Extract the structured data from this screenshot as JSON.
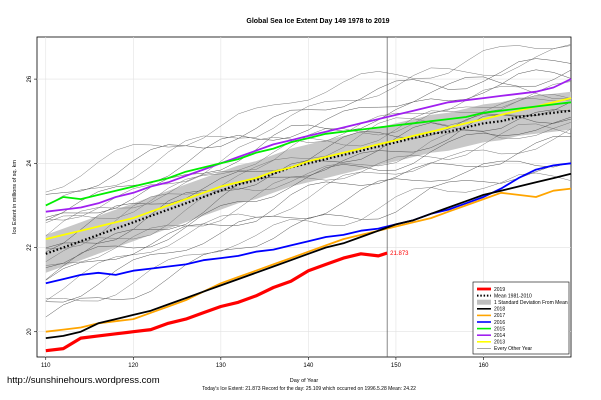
{
  "chart_data": {
    "type": "line",
    "title": "Global Sea Ice Extent Day 149 1978 to 2019",
    "xlabel": "Day of Year",
    "ylabel": "Ice Extent in millions of sq. km",
    "xlim": [
      109,
      170
    ],
    "ylim": [
      19.4,
      27.0
    ],
    "x_ticks": [
      110,
      120,
      130,
      140,
      150,
      160
    ],
    "y_ticks": [
      20,
      22,
      24,
      26
    ],
    "marker_day": 149,
    "annotation": "21.873",
    "footnote": "Today's Ice Extent: 21.873   Record for the day: 25.109 which occurred on 1996.5.28   Mean: 24.22",
    "watermark": "http://sunshinehours.wordpress.com",
    "grid": true,
    "legend_position": "bottom-right",
    "legend": [
      {
        "label": "2019",
        "color": "#ff0000",
        "style": "thick"
      },
      {
        "label": "Mean 1981-2010",
        "color": "#000000",
        "style": "dotted"
      },
      {
        "label": "1 Standard Deviation From Mean",
        "color": "#bfbfbf",
        "style": "band"
      },
      {
        "label": "2018",
        "color": "#000000",
        "style": "line"
      },
      {
        "label": "2017",
        "color": "#ffa500",
        "style": "line"
      },
      {
        "label": "2016",
        "color": "#0000ff",
        "style": "line"
      },
      {
        "label": "2015",
        "color": "#00ee00",
        "style": "line"
      },
      {
        "label": "2014",
        "color": "#a020f0",
        "style": "line"
      },
      {
        "label": "2013",
        "color": "#ffff00",
        "style": "line"
      },
      {
        "label": "Every Other Year",
        "color": "#808080",
        "style": "thin"
      }
    ],
    "series": [
      {
        "name": "2019",
        "color": "#ff0000",
        "width": 3.2,
        "x": [
          110,
          112,
          114,
          116,
          118,
          120,
          122,
          124,
          126,
          128,
          130,
          132,
          134,
          136,
          138,
          140,
          142,
          144,
          146,
          148,
          149
        ],
        "y": [
          19.55,
          19.6,
          19.85,
          19.9,
          19.95,
          20.0,
          20.05,
          20.2,
          20.3,
          20.45,
          20.6,
          20.7,
          20.85,
          21.05,
          21.2,
          21.45,
          21.6,
          21.75,
          21.85,
          21.8,
          21.87
        ]
      },
      {
        "name": "2018",
        "color": "#000000",
        "width": 1.8,
        "x": [
          110,
          112,
          114,
          116,
          118,
          120,
          122,
          124,
          126,
          128,
          130,
          132,
          134,
          136,
          138,
          140,
          142,
          144,
          146,
          148,
          150,
          152,
          154,
          156,
          158,
          160,
          162,
          164,
          166,
          168,
          170
        ],
        "y": [
          19.85,
          19.9,
          20.0,
          20.2,
          20.3,
          20.4,
          20.5,
          20.65,
          20.8,
          20.95,
          21.1,
          21.25,
          21.4,
          21.55,
          21.7,
          21.85,
          22.0,
          22.1,
          22.25,
          22.4,
          22.55,
          22.65,
          22.8,
          22.95,
          23.1,
          23.25,
          23.35,
          23.45,
          23.55,
          23.65,
          23.75
        ]
      },
      {
        "name": "2017",
        "color": "#ffa500",
        "width": 1.8,
        "x": [
          110,
          112,
          114,
          116,
          118,
          120,
          122,
          124,
          126,
          128,
          130,
          132,
          134,
          136,
          138,
          140,
          142,
          144,
          146,
          148,
          150,
          152,
          154,
          156,
          158,
          160,
          162,
          164,
          166,
          168,
          170
        ],
        "y": [
          20.0,
          20.05,
          20.1,
          20.2,
          20.25,
          20.3,
          20.45,
          20.6,
          20.75,
          20.95,
          21.15,
          21.3,
          21.45,
          21.6,
          21.75,
          21.9,
          22.05,
          22.2,
          22.3,
          22.4,
          22.5,
          22.6,
          22.7,
          22.85,
          23.0,
          23.15,
          23.3,
          23.25,
          23.2,
          23.35,
          23.4
        ]
      },
      {
        "name": "2016",
        "color": "#0000ff",
        "width": 1.8,
        "x": [
          110,
          112,
          114,
          116,
          118,
          120,
          122,
          124,
          126,
          128,
          130,
          132,
          134,
          136,
          138,
          140,
          142,
          144,
          146,
          148,
          150,
          152,
          154,
          156,
          158,
          160,
          162,
          164,
          166,
          168,
          170
        ],
        "y": [
          21.15,
          21.25,
          21.35,
          21.4,
          21.35,
          21.45,
          21.5,
          21.55,
          21.6,
          21.7,
          21.75,
          21.8,
          21.9,
          21.95,
          22.05,
          22.15,
          22.25,
          22.3,
          22.4,
          22.45,
          22.55,
          22.65,
          22.8,
          22.9,
          23.05,
          23.2,
          23.4,
          23.65,
          23.85,
          23.95,
          24.0
        ]
      },
      {
        "name": "2015",
        "color": "#00ee00",
        "width": 1.8,
        "x": [
          110,
          112,
          114,
          116,
          118,
          120,
          122,
          124,
          126,
          128,
          130,
          132,
          134,
          136,
          138,
          140,
          142,
          144,
          146,
          148,
          150,
          152,
          154,
          156,
          158,
          160,
          162,
          164,
          166,
          168,
          170
        ],
        "y": [
          23.0,
          23.2,
          23.15,
          23.25,
          23.35,
          23.45,
          23.55,
          23.65,
          23.8,
          23.9,
          24.0,
          24.1,
          24.25,
          24.35,
          24.5,
          24.6,
          24.7,
          24.75,
          24.8,
          24.85,
          24.9,
          24.95,
          25.0,
          25.05,
          25.1,
          25.2,
          25.25,
          25.3,
          25.35,
          25.4,
          25.45
        ]
      },
      {
        "name": "2014",
        "color": "#a020f0",
        "width": 1.8,
        "x": [
          110,
          112,
          114,
          116,
          118,
          120,
          122,
          124,
          126,
          128,
          130,
          132,
          134,
          136,
          138,
          140,
          142,
          144,
          146,
          148,
          150,
          152,
          154,
          156,
          158,
          160,
          162,
          164,
          166,
          168,
          170
        ],
        "y": [
          22.85,
          22.9,
          22.95,
          23.05,
          23.2,
          23.3,
          23.45,
          23.55,
          23.7,
          23.85,
          24.0,
          24.15,
          24.3,
          24.45,
          24.55,
          24.65,
          24.75,
          24.85,
          24.95,
          25.05,
          25.15,
          25.25,
          25.35,
          25.45,
          25.5,
          25.55,
          25.6,
          25.65,
          25.7,
          25.8,
          26.0
        ]
      },
      {
        "name": "2013",
        "color": "#ffff00",
        "width": 1.8,
        "x": [
          110,
          112,
          114,
          116,
          118,
          120,
          122,
          124,
          126,
          128,
          130,
          132,
          134,
          136,
          138,
          140,
          142,
          144,
          146,
          148,
          150,
          152,
          154,
          156,
          158,
          160,
          162,
          164,
          166,
          168,
          170
        ],
        "y": [
          22.2,
          22.3,
          22.4,
          22.5,
          22.6,
          22.7,
          22.85,
          23.0,
          23.15,
          23.3,
          23.45,
          23.55,
          23.65,
          23.8,
          23.9,
          24.05,
          24.15,
          24.25,
          24.35,
          24.45,
          24.55,
          24.65,
          24.75,
          24.85,
          24.95,
          25.05,
          25.15,
          25.25,
          25.35,
          25.45,
          25.55
        ]
      }
    ],
    "mean_1981_2010": {
      "x": [
        110,
        112,
        114,
        116,
        118,
        120,
        122,
        124,
        126,
        128,
        130,
        132,
        134,
        136,
        138,
        140,
        142,
        144,
        146,
        148,
        150,
        152,
        154,
        156,
        158,
        160,
        162,
        164,
        166,
        168,
        170
      ],
      "y": [
        21.85,
        22.0,
        22.15,
        22.3,
        22.45,
        22.6,
        22.75,
        22.9,
        23.05,
        23.2,
        23.35,
        23.5,
        23.6,
        23.75,
        23.9,
        24.0,
        24.1,
        24.2,
        24.3,
        24.4,
        24.5,
        24.6,
        24.7,
        24.75,
        24.85,
        24.95,
        25.0,
        25.1,
        25.15,
        25.2,
        25.25
      ],
      "sd": 0.45
    }
  }
}
